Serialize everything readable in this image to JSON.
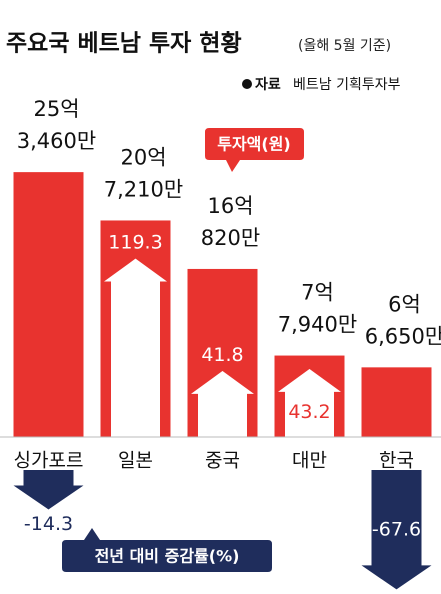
{
  "chart_data": {
    "type": "bar",
    "title": "주요국 베트남 투자 현황",
    "subtitle": "(올해 5월 기준)",
    "source_label": "자료",
    "source": "베트남 기획투자부",
    "categories": [
      "싱가포르",
      "일본",
      "중국",
      "대만",
      "한국"
    ],
    "series": [
      {
        "name": "투자액(원)",
        "color": "#e8332f",
        "values": [
          253460,
          207210,
          160820,
          77940,
          66650
        ],
        "value_labels": [
          [
            "25억",
            "3,460만"
          ],
          [
            "20억",
            "7,210만"
          ],
          [
            "16억",
            "820만"
          ],
          [
            "7억",
            "7,940만"
          ],
          [
            "6억",
            "6,650만"
          ]
        ]
      },
      {
        "name": "전년 대비 증감률(%)",
        "color": "#1f2d5c",
        "values": [
          -14.3,
          119.3,
          41.8,
          43.2,
          -67.6
        ]
      }
    ]
  }
}
